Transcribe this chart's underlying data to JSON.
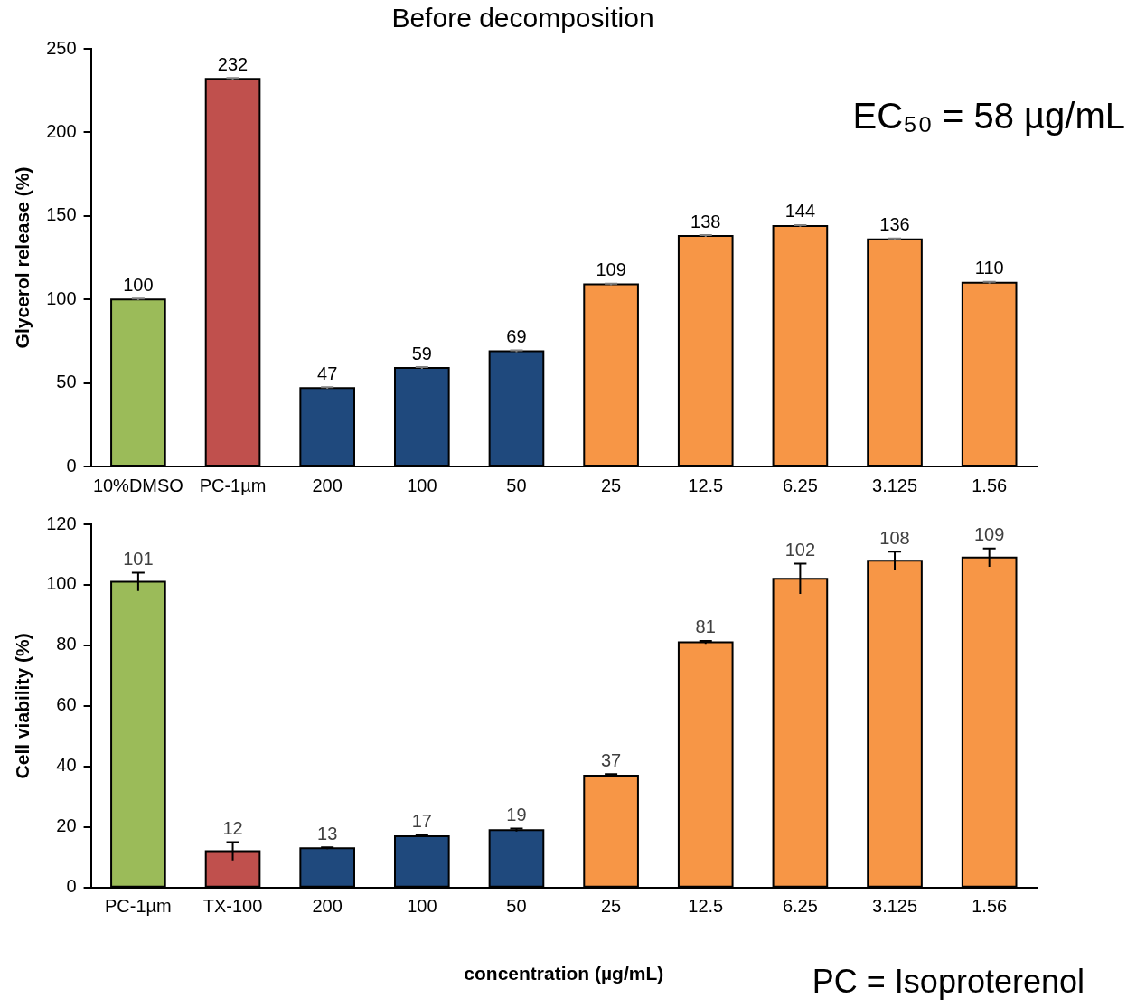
{
  "chart_data": [
    {
      "type": "bar",
      "title": "Before decomposition",
      "ylabel": "Glycerol release (%)",
      "categories": [
        "10%DMSO",
        "PC-1µm",
        "200",
        "100",
        "50",
        "25",
        "12.5",
        "6.25",
        "3.125",
        "1.56"
      ],
      "values": [
        100,
        232,
        47,
        59,
        69,
        109,
        138,
        144,
        136,
        110
      ],
      "errors": [
        0.5,
        0.5,
        0.5,
        0.5,
        0.5,
        0.5,
        0.5,
        0.5,
        0.5,
        0.5
      ],
      "colors": [
        "#9bbb59",
        "#c0504d",
        "#1f497d",
        "#1f497d",
        "#1f497d",
        "#f79646",
        "#f79646",
        "#f79646",
        "#f79646",
        "#f79646"
      ],
      "ylim": [
        0,
        250
      ],
      "yticks": [
        0,
        50,
        100,
        150,
        200,
        250
      ],
      "grid": false,
      "legend": false,
      "data_labels": true,
      "annotations": [
        "EC₅₀ = 58 µg/mL"
      ]
    },
    {
      "type": "bar",
      "ylabel": "Cell viability (%)",
      "xlabel": "concentration (µg/mL)",
      "categories": [
        "PC-1µm",
        "TX-100",
        "200",
        "100",
        "50",
        "25",
        "12.5",
        "6.25",
        "3.125",
        "1.56"
      ],
      "values": [
        101,
        12,
        13,
        17,
        19,
        37,
        81,
        102,
        108,
        109
      ],
      "errors": [
        3,
        3,
        0.3,
        0.3,
        0.5,
        0.5,
        0.5,
        5,
        3,
        3
      ],
      "colors": [
        "#9bbb59",
        "#c0504d",
        "#1f497d",
        "#1f497d",
        "#1f497d",
        "#f79646",
        "#f79646",
        "#f79646",
        "#f79646",
        "#f79646"
      ],
      "ylim": [
        0,
        120
      ],
      "yticks": [
        0,
        20,
        40,
        60,
        80,
        100,
        120
      ],
      "grid": false,
      "legend": false,
      "data_labels": true,
      "annotations": [
        "PC = Isoproterenol"
      ]
    }
  ]
}
